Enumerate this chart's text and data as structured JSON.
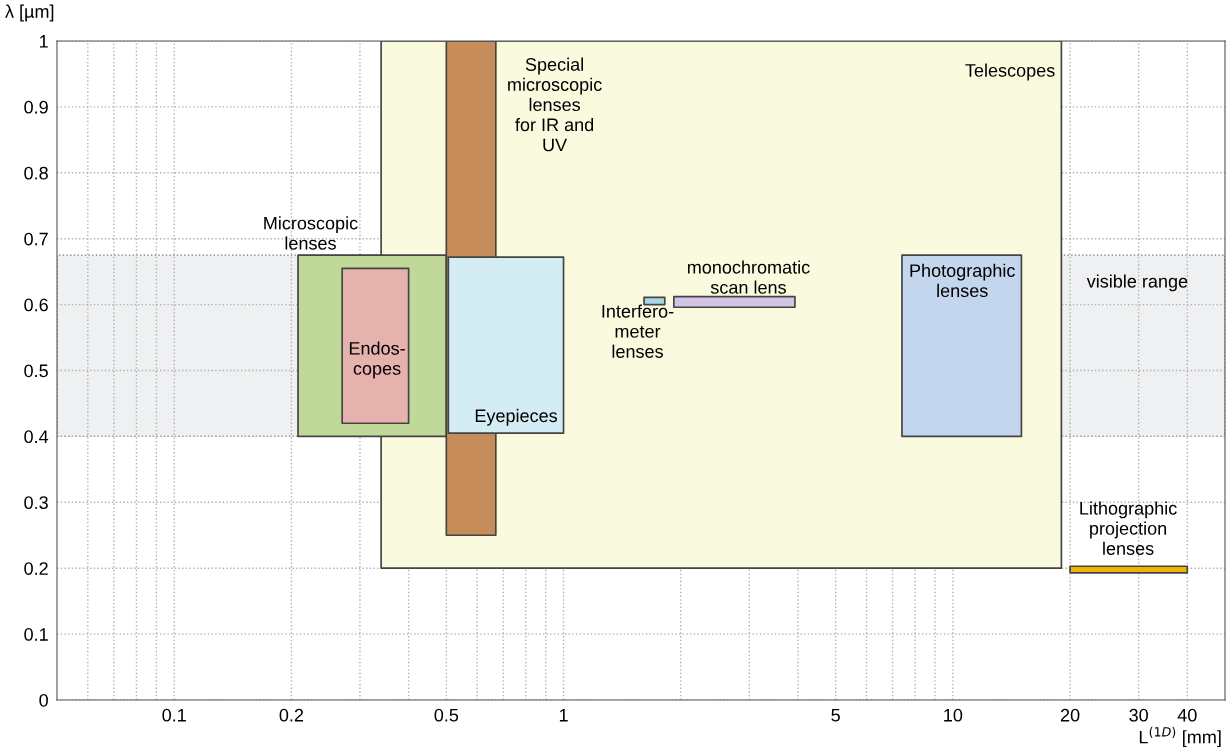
{
  "chart_data": {
    "type": "area",
    "xlabel": "L$^{(1D)}$ [mm]",
    "ylabel": "λ [µm]",
    "log": "x",
    "grid": true,
    "xlim": [
      0.05,
      50
    ],
    "xticks": [
      {
        "value": 0.06,
        "label": null
      },
      {
        "value": 0.07,
        "label": null
      },
      {
        "value": 0.08,
        "label": null
      },
      {
        "value": 0.09,
        "label": null
      },
      0.1,
      0.2,
      {
        "value": 0.3,
        "label": null
      },
      {
        "value": 0.4,
        "label": null
      },
      0.5,
      {
        "value": 0.6,
        "label": null
      },
      {
        "value": 0.7,
        "label": null
      },
      {
        "value": 0.8,
        "label": null
      },
      {
        "value": 0.9,
        "label": null
      },
      1,
      {
        "value": 2,
        "label": null
      },
      {
        "value": 3,
        "label": null
      },
      {
        "value": 4,
        "label": null
      },
      5,
      {
        "value": 6,
        "label": null
      },
      {
        "value": 7,
        "label": null
      },
      {
        "value": 8,
        "label": null
      },
      {
        "value": 9,
        "label": null
      },
      10,
      20,
      30,
      40
    ],
    "ylim": [
      0,
      1
    ],
    "yticks": [
      0,
      0.1,
      0.2,
      0.3,
      0.4,
      0.5,
      0.6,
      0.7,
      0.8,
      0.9,
      1
    ],
    "bands": [
      {
        "axis": "y",
        "from": 0.4,
        "to": 0.675,
        "label": "visible range",
        "color": "#eef0f2"
      }
    ],
    "series": [
      {
        "name": "Telescopes",
        "x": [
          0.34,
          0.34,
          19,
          19,
          0.34
        ],
        "values": [
          0.2,
          1.0,
          1.0,
          0.2,
          0.2
        ],
        "color": "#fafade"
      },
      {
        "name": "Microscopic\nlenses",
        "x": [
          0.208,
          0.208,
          0.5,
          0.5,
          0.208
        ],
        "values": [
          0.4,
          0.675,
          0.675,
          0.4,
          0.4
        ],
        "color": "#c0d89a"
      },
      {
        "name": "Endos-\ncopes",
        "x": [
          0.27,
          0.27,
          0.4,
          0.4,
          0.27
        ],
        "values": [
          0.42,
          0.655,
          0.655,
          0.42,
          0.42
        ],
        "color": "#e6b2ae"
      },
      {
        "name": "Special\nmicroscopic\nlenses\nfor IR and\nUV",
        "x": [
          0.5,
          0.5,
          0.67,
          0.67,
          0.5
        ],
        "values": [
          0.25,
          1.0,
          1.0,
          0.25,
          0.25
        ],
        "color": "#c68c5a"
      },
      {
        "name": "Eyepieces",
        "x": [
          0.506,
          0.506,
          1.0,
          1.0,
          0.506
        ],
        "values": [
          0.405,
          0.672,
          0.672,
          0.405,
          0.405
        ],
        "color": "#d4ecf4"
      },
      {
        "name": "Interfero-\nmeter\nlenses",
        "x": [
          1.61,
          1.61,
          1.82,
          1.82,
          1.61
        ],
        "values": [
          0.6,
          0.611,
          0.611,
          0.6,
          0.6
        ],
        "color": "#a8d8e8"
      },
      {
        "name": "monochromatic\nscan lens",
        "x": [
          1.92,
          1.92,
          3.93,
          3.93,
          1.92
        ],
        "values": [
          0.596,
          0.612,
          0.612,
          0.596,
          0.596
        ],
        "color": "#d2c4e2"
      },
      {
        "name": "Photographic\nlenses",
        "x": [
          7.4,
          7.4,
          15,
          15,
          7.4
        ],
        "values": [
          0.4,
          0.675,
          0.675,
          0.4,
          0.4
        ],
        "color": "#c4d6ee"
      },
      {
        "name": "Lithographic\nprojection\nlenses",
        "x": [
          20,
          20,
          40,
          40,
          20
        ],
        "values": [
          0.193,
          0.203,
          0.203,
          0.193,
          0.193
        ],
        "color": "#f0b400"
      }
    ]
  }
}
